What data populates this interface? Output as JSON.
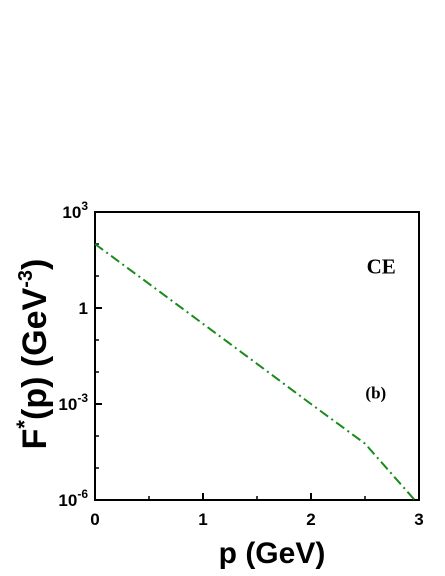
{
  "chart_data": {
    "type": "line",
    "title": "",
    "xlabel": "p  (GeV)",
    "ylabel": {
      "base": "F",
      "sup": "*",
      "rest": "(p) (GeV",
      "unit_exp": "-3",
      "close": ")"
    },
    "xlim": [
      0,
      3
    ],
    "ylim": [
      1e-06,
      1000
    ],
    "yscale": "log",
    "grid": false,
    "x_ticks": [
      {
        "value": 0,
        "label": "0"
      },
      {
        "value": 1,
        "label": "1"
      },
      {
        "value": 2,
        "label": "2"
      },
      {
        "value": 3,
        "label": "3"
      }
    ],
    "y_ticks": [
      {
        "value": 1e-06,
        "base": "10",
        "exp": "-6"
      },
      {
        "value": 0.001,
        "base": "10",
        "exp": "-3"
      },
      {
        "value": 1,
        "base": "1",
        "exp": ""
      },
      {
        "value": 1000,
        "base": "10",
        "exp": "3"
      }
    ],
    "series": [
      {
        "color": "#1a8a1a",
        "line_style": "dash-dot",
        "x": [
          0,
          0.5,
          1,
          1.5,
          2,
          2.5,
          2.96
        ],
        "y": [
          100,
          5.7,
          0.32,
          0.018,
          0.001,
          5.8e-05,
          1e-06
        ]
      }
    ],
    "annotations": [
      {
        "text": "CE",
        "x": 2.65,
        "y": 12
      },
      {
        "text": "(b)",
        "x": 2.6,
        "y": 0.0015
      }
    ]
  }
}
